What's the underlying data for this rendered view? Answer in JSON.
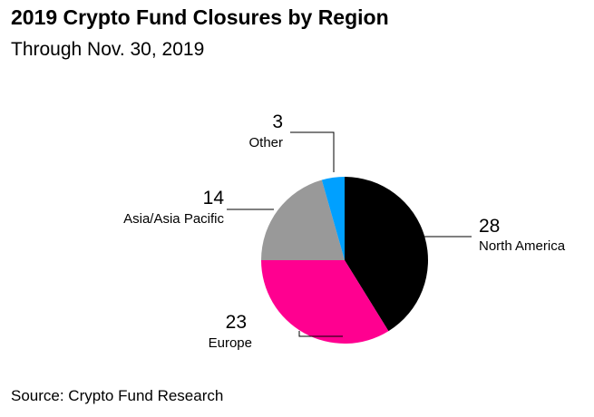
{
  "chart_data": {
    "type": "pie",
    "title": "2019 Crypto Fund Closures by Region",
    "subtitle": "Through Nov. 30, 2019",
    "slices": [
      {
        "label": "North America",
        "value": 28,
        "color": "#000000"
      },
      {
        "label": "Europe",
        "value": 23,
        "color": "#ff0090"
      },
      {
        "label": "Asia/Asia Pacific",
        "value": 14,
        "color": "#999999"
      },
      {
        "label": "Other",
        "value": 3,
        "color": "#00a0ff"
      }
    ]
  },
  "source": "Source: Crypto Fund Research"
}
